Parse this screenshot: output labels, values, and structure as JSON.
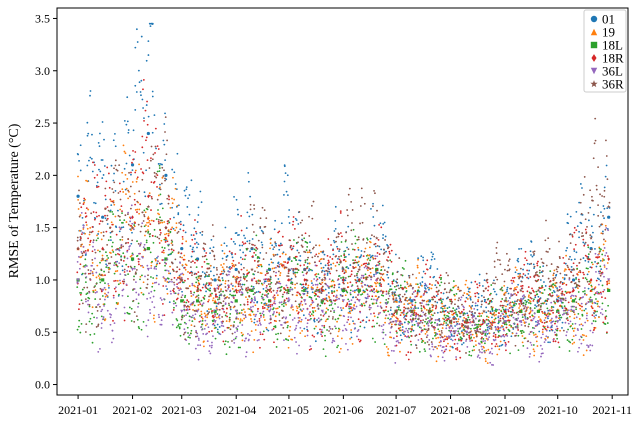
{
  "chart_data": {
    "type": "scatter",
    "title": "",
    "xlabel": "",
    "ylabel": "RMSE of Temperature (°C)",
    "x_range": [
      "2020-12-20",
      "2021-11-10"
    ],
    "ylim": [
      -0.1,
      3.6
    ],
    "grid": false,
    "legend_position": "top-right",
    "x_tick_labels": [
      "2021-01",
      "2021-02",
      "2021-03",
      "2021-04",
      "2021-05",
      "2021-06",
      "2021-07",
      "2021-08",
      "2021-09",
      "2021-10",
      "2021-11"
    ],
    "y_tick_values": [
      0.0,
      0.5,
      1.0,
      1.5,
      2.0,
      2.5,
      3.0,
      3.5
    ],
    "y_tick_labels": [
      "0.0",
      "0.5",
      "1.0",
      "1.5",
      "2.0",
      "2.5",
      "3.0",
      "3.5"
    ],
    "series": [
      {
        "name": "01",
        "marker": "circle",
        "color": "#1f77b4",
        "offset": 0.25,
        "x": [
          "2021-01-01",
          "2021-01-15",
          "2021-02-01",
          "2021-02-10",
          "2021-02-20",
          "2021-03-01",
          "2021-03-10",
          "2021-03-20",
          "2021-04-01",
          "2021-04-10",
          "2021-04-20",
          "2021-05-01",
          "2021-05-10",
          "2021-05-20",
          "2021-06-01",
          "2021-06-10",
          "2021-06-20",
          "2021-07-01",
          "2021-07-10",
          "2021-07-20",
          "2021-08-01",
          "2021-08-10",
          "2021-08-20",
          "2021-09-01",
          "2021-09-10",
          "2021-09-20",
          "2021-10-01",
          "2021-10-10",
          "2021-10-20",
          "2021-10-30"
        ],
        "y": [
          1.8,
          1.6,
          2.1,
          2.4,
          2.0,
          1.3,
          1.2,
          1.0,
          1.1,
          1.3,
          1.1,
          1.2,
          1.1,
          0.9,
          1.0,
          1.0,
          1.1,
          0.8,
          0.8,
          0.8,
          0.6,
          0.6,
          0.6,
          0.7,
          0.8,
          0.8,
          0.8,
          1.0,
          1.3,
          1.6
        ]
      },
      {
        "name": "19",
        "marker": "triangle",
        "color": "#ff7f0e",
        "offset": 0.0,
        "x": [
          "2021-01-01",
          "2021-01-15",
          "2021-02-01",
          "2021-02-10",
          "2021-02-20",
          "2021-03-01",
          "2021-03-10",
          "2021-03-20",
          "2021-04-01",
          "2021-04-10",
          "2021-04-20",
          "2021-05-01",
          "2021-05-10",
          "2021-05-20",
          "2021-06-01",
          "2021-06-10",
          "2021-06-20",
          "2021-07-01",
          "2021-07-10",
          "2021-07-20",
          "2021-08-01",
          "2021-08-10",
          "2021-08-20",
          "2021-09-01",
          "2021-09-10",
          "2021-09-20",
          "2021-10-01",
          "2021-10-10",
          "2021-10-20",
          "2021-10-30"
        ],
        "y": [
          1.3,
          1.2,
          1.5,
          1.6,
          1.4,
          1.0,
          0.9,
          0.8,
          0.8,
          0.9,
          0.8,
          0.9,
          0.9,
          0.8,
          0.9,
          0.9,
          0.9,
          0.7,
          0.7,
          0.7,
          0.6,
          0.6,
          0.6,
          0.6,
          0.7,
          0.7,
          0.7,
          0.8,
          0.9,
          1.0
        ]
      },
      {
        "name": "18L",
        "marker": "square",
        "color": "#2ca02c",
        "offset": 0.0,
        "x": [
          "2021-01-01",
          "2021-01-15",
          "2021-02-01",
          "2021-02-10",
          "2021-02-20",
          "2021-03-01",
          "2021-03-10",
          "2021-03-20",
          "2021-04-01",
          "2021-04-10",
          "2021-04-20",
          "2021-05-01",
          "2021-05-10",
          "2021-05-20",
          "2021-06-01",
          "2021-06-10",
          "2021-06-20",
          "2021-07-01",
          "2021-07-10",
          "2021-07-20",
          "2021-08-01",
          "2021-08-10",
          "2021-08-20",
          "2021-09-01",
          "2021-09-10",
          "2021-09-20",
          "2021-10-01",
          "2021-10-10",
          "2021-10-20",
          "2021-10-30"
        ],
        "y": [
          1.0,
          1.0,
          1.2,
          1.3,
          1.2,
          0.8,
          0.8,
          0.7,
          0.8,
          0.9,
          0.8,
          0.9,
          0.9,
          0.8,
          0.9,
          0.9,
          1.1,
          0.7,
          0.7,
          0.7,
          0.6,
          0.6,
          0.6,
          0.6,
          0.7,
          0.7,
          0.7,
          0.8,
          0.8,
          0.9
        ]
      },
      {
        "name": "18R",
        "marker": "diamond",
        "color": "#d62728",
        "offset": 0.1,
        "x": [
          "2021-01-01",
          "2021-01-15",
          "2021-02-01",
          "2021-02-10",
          "2021-02-20",
          "2021-03-01",
          "2021-03-10",
          "2021-03-20",
          "2021-04-01",
          "2021-04-10",
          "2021-04-20",
          "2021-05-01",
          "2021-05-10",
          "2021-05-20",
          "2021-06-01",
          "2021-06-10",
          "2021-06-20",
          "2021-07-01",
          "2021-07-10",
          "2021-07-20",
          "2021-08-01",
          "2021-08-10",
          "2021-08-20",
          "2021-09-01",
          "2021-09-10",
          "2021-09-20",
          "2021-10-01",
          "2021-10-10",
          "2021-10-20",
          "2021-10-30"
        ],
        "y": [
          1.3,
          1.3,
          1.6,
          1.8,
          1.5,
          1.0,
          0.9,
          0.9,
          0.9,
          1.0,
          0.9,
          1.0,
          1.0,
          0.9,
          1.0,
          1.0,
          1.0,
          0.7,
          0.7,
          0.7,
          0.6,
          0.6,
          0.6,
          0.7,
          0.8,
          0.8,
          0.8,
          0.9,
          1.0,
          1.2
        ]
      },
      {
        "name": "36L",
        "marker": "triangle-down",
        "color": "#9467bd",
        "offset": -0.05,
        "x": [
          "2021-01-01",
          "2021-01-15",
          "2021-02-01",
          "2021-02-10",
          "2021-02-20",
          "2021-03-01",
          "2021-03-10",
          "2021-03-20",
          "2021-04-01",
          "2021-04-10",
          "2021-04-20",
          "2021-05-01",
          "2021-05-10",
          "2021-05-20",
          "2021-06-01",
          "2021-06-10",
          "2021-06-20",
          "2021-07-01",
          "2021-07-10",
          "2021-07-20",
          "2021-08-01",
          "2021-08-10",
          "2021-08-20",
          "2021-09-01",
          "2021-09-10",
          "2021-09-20",
          "2021-10-01",
          "2021-10-10",
          "2021-10-20",
          "2021-10-30"
        ],
        "y": [
          1.0,
          0.9,
          1.1,
          1.1,
          1.0,
          0.7,
          0.7,
          0.6,
          0.7,
          0.8,
          0.7,
          0.8,
          0.8,
          0.7,
          0.8,
          0.8,
          0.8,
          0.6,
          0.6,
          0.6,
          0.5,
          0.5,
          0.5,
          0.6,
          0.6,
          0.6,
          0.6,
          0.7,
          0.8,
          1.0
        ]
      },
      {
        "name": "36R",
        "marker": "star",
        "color": "#8c564b",
        "offset": 0.15,
        "x": [
          "2021-01-01",
          "2021-01-15",
          "2021-02-01",
          "2021-02-10",
          "2021-02-20",
          "2021-03-01",
          "2021-03-10",
          "2021-03-20",
          "2021-04-01",
          "2021-04-10",
          "2021-04-20",
          "2021-05-01",
          "2021-05-10",
          "2021-05-20",
          "2021-06-01",
          "2021-06-10",
          "2021-06-20",
          "2021-07-01",
          "2021-07-10",
          "2021-07-20",
          "2021-08-01",
          "2021-08-10",
          "2021-08-20",
          "2021-09-01",
          "2021-09-10",
          "2021-09-20",
          "2021-10-01",
          "2021-10-10",
          "2021-10-20",
          "2021-10-30"
        ],
        "y": [
          1.3,
          1.2,
          1.5,
          1.7,
          1.5,
          1.0,
          0.9,
          0.9,
          1.0,
          1.1,
          1.0,
          1.1,
          1.1,
          1.0,
          1.1,
          1.1,
          1.4,
          0.7,
          0.7,
          0.7,
          0.6,
          0.6,
          0.7,
          0.8,
          0.9,
          0.9,
          0.9,
          1.1,
          1.4,
          1.7
        ]
      }
    ]
  }
}
